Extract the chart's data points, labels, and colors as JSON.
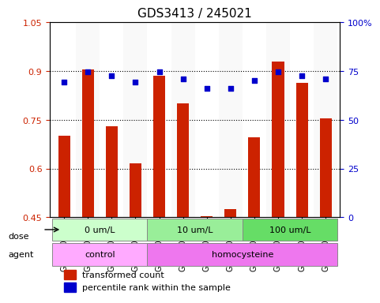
{
  "title": "GDS3413 / 245021",
  "samples": [
    "GSM240525",
    "GSM240526",
    "GSM240527",
    "GSM240528",
    "GSM240529",
    "GSM240530",
    "GSM240531",
    "GSM240532",
    "GSM240533",
    "GSM240534",
    "GSM240535",
    "GSM240848"
  ],
  "transformed_count": [
    0.7,
    0.905,
    0.73,
    0.615,
    0.885,
    0.8,
    0.453,
    0.475,
    0.695,
    0.93,
    0.865,
    0.755
  ],
  "percentile_rank": [
    0.695,
    0.745,
    0.725,
    0.695,
    0.745,
    0.71,
    0.66,
    0.66,
    0.7,
    0.745,
    0.725,
    0.71
  ],
  "ylim_left": [
    0.45,
    1.05
  ],
  "ylim_right": [
    0,
    100
  ],
  "yticks_left": [
    0.45,
    0.6,
    0.75,
    0.9,
    1.05
  ],
  "yticks_right": [
    0,
    25,
    50,
    75,
    100
  ],
  "ytick_labels_left": [
    "0.45",
    "0.6",
    "0.75",
    "0.9",
    "1.05"
  ],
  "ytick_labels_right": [
    "0",
    "25",
    "50",
    "75",
    "100%"
  ],
  "bar_color": "#cc2200",
  "dot_color": "#0000cc",
  "bar_bottom": 0.45,
  "dose_groups": [
    {
      "label": "0 um/L",
      "start": 0,
      "end": 4,
      "color": "#aaffaa"
    },
    {
      "label": "10 um/L",
      "start": 4,
      "end": 8,
      "color": "#88ee88"
    },
    {
      "label": "100 um/L",
      "start": 8,
      "end": 12,
      "color": "#44cc44"
    }
  ],
  "agent_groups": [
    {
      "label": "control",
      "start": 0,
      "end": 4,
      "color": "#ee88ee"
    },
    {
      "label": "homocysteine",
      "start": 4,
      "end": 12,
      "color": "#dd66dd"
    }
  ],
  "dose_label": "dose",
  "agent_label": "agent",
  "legend_bar_label": "transformed count",
  "legend_dot_label": "percentile rank within the sample",
  "gridline_color": "#000000",
  "axis_color_left": "#cc2200",
  "axis_color_right": "#0000cc",
  "bg_color": "#ffffff",
  "plot_bg": "#ffffff",
  "border_color": "#888888"
}
